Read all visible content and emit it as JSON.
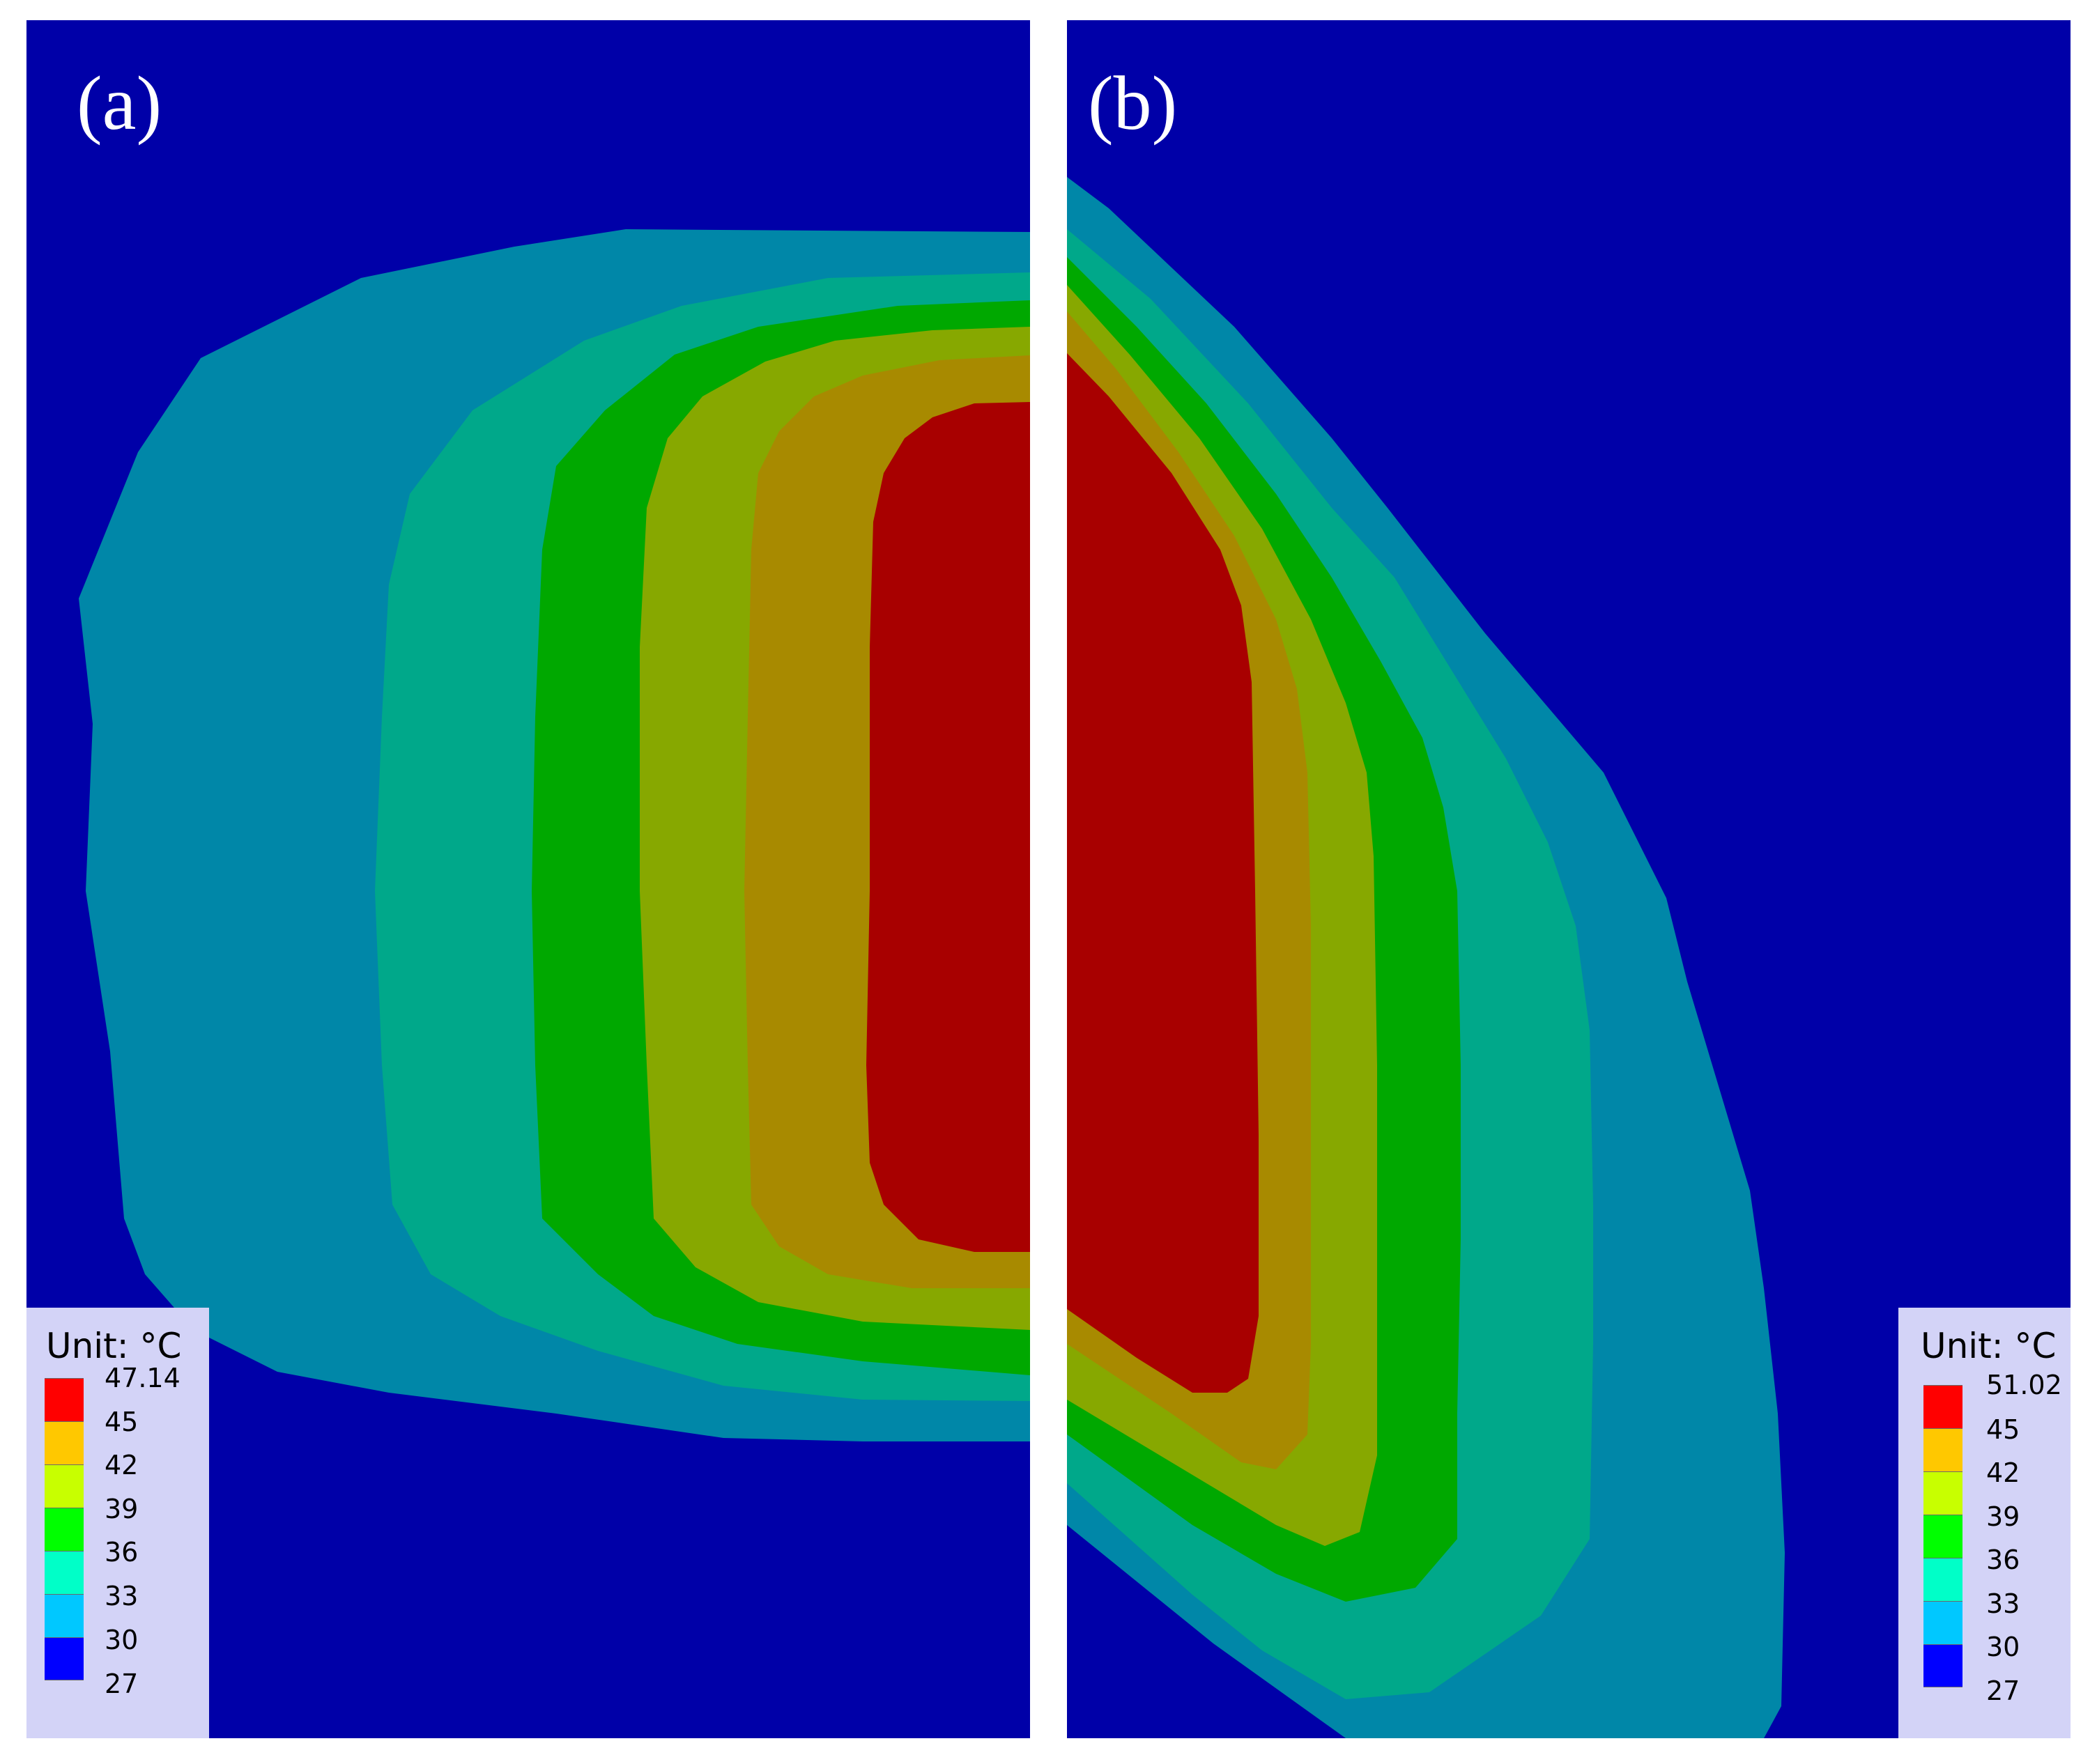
{
  "colors": {
    "background": "#0000a8",
    "band_30_33": "#0087a8",
    "band_33_36": "#00a88a",
    "band_36_39": "#00a800",
    "band_39_42": "#87a800",
    "band_42_45": "#a88a00",
    "band_45_max": "#a80000"
  },
  "panel_a": {
    "label": "(a)",
    "legend": {
      "title": "Unit: °C",
      "values": [
        "47.14",
        "45",
        "42",
        "39",
        "36",
        "33",
        "30",
        "27"
      ],
      "swatches": [
        "#ff0000",
        "#ffc800",
        "#c8ff00",
        "#00ff00",
        "#00ffc8",
        "#00c8ff",
        "#0000ff"
      ]
    }
  },
  "panel_b": {
    "label": "(b)",
    "legend": {
      "title": "Unit: °C",
      "values": [
        "51.02",
        "45",
        "42",
        "39",
        "36",
        "33",
        "30",
        "27"
      ],
      "swatches": [
        "#ff0000",
        "#ffc800",
        "#c8ff00",
        "#00ff00",
        "#00ffc8",
        "#00c8ff",
        "#0000ff"
      ]
    }
  }
}
